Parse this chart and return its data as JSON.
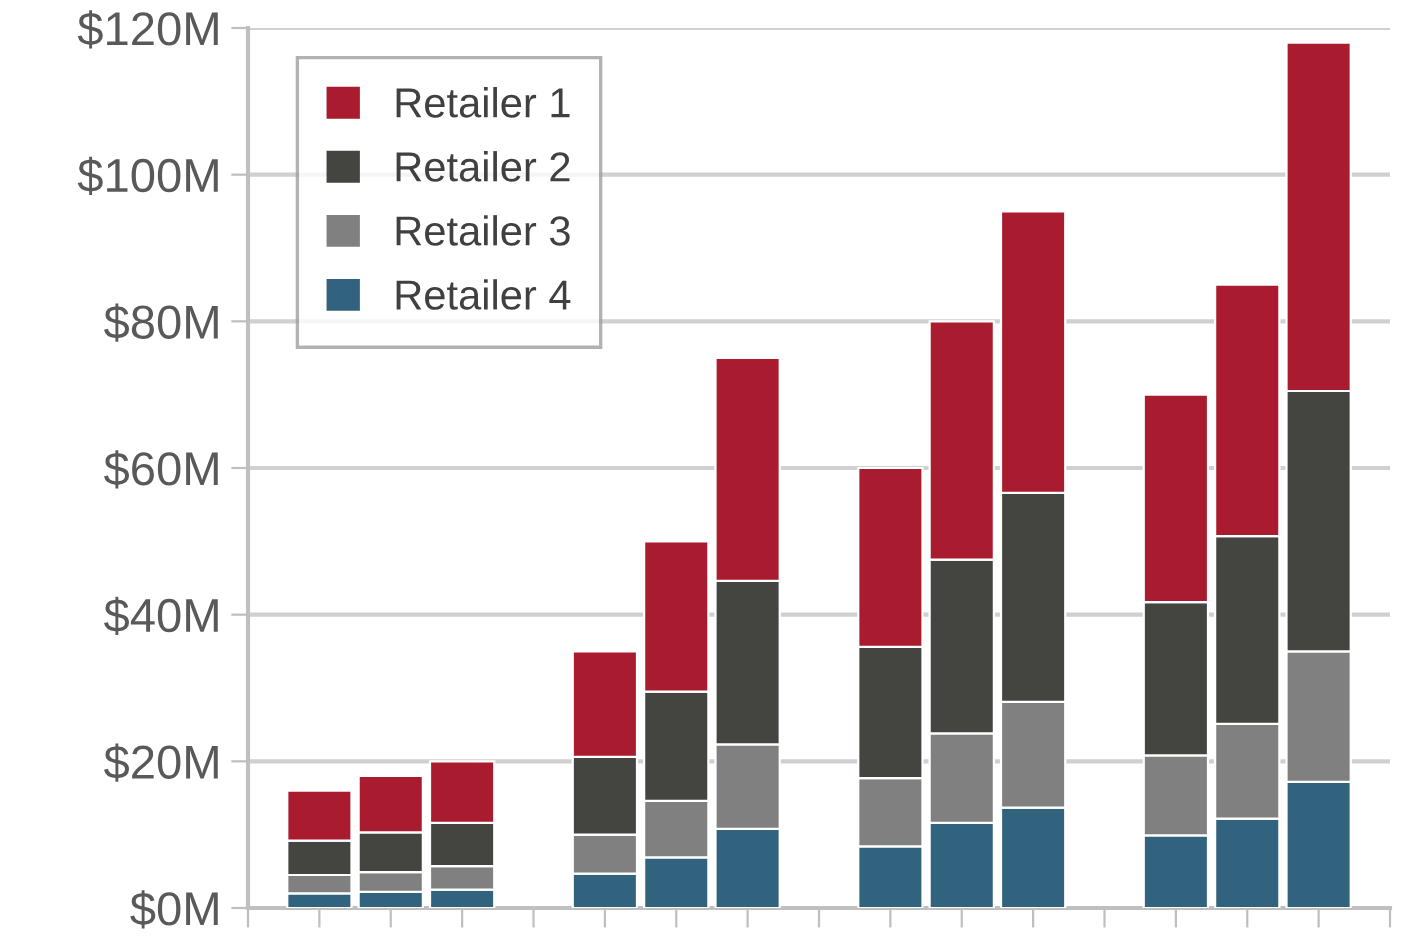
{
  "chart_data": {
    "type": "bar",
    "stacked": true,
    "categories": [
      null,
      null,
      null,
      null,
      null,
      null,
      null,
      null,
      null,
      null,
      null,
      null,
      null,
      null,
      null
    ],
    "series": [
      {
        "name": "Retailer 4",
        "color": "#31637f",
        "values": [
          2.0,
          2.2,
          2.5,
          null,
          4.7,
          6.9,
          10.8,
          null,
          8.4,
          11.6,
          13.7,
          null,
          9.9,
          12.2,
          17.2
        ]
      },
      {
        "name": "Retailer 3",
        "color": "#808080",
        "values": [
          2.5,
          2.7,
          3.2,
          null,
          5.3,
          7.7,
          11.5,
          null,
          9.3,
          12.2,
          14.4,
          null,
          10.9,
          12.9,
          17.8
        ]
      },
      {
        "name": "Retailer 2",
        "color": "#444440",
        "values": [
          4.7,
          5.4,
          5.9,
          null,
          10.6,
          14.9,
          22.3,
          null,
          17.9,
          23.7,
          28.5,
          null,
          20.9,
          25.6,
          35.5
        ]
      },
      {
        "name": "Retailer 1",
        "color": "#a91b2e",
        "values": [
          6.8,
          7.7,
          8.4,
          null,
          14.4,
          20.5,
          30.4,
          null,
          24.4,
          32.5,
          38.4,
          null,
          28.3,
          34.3,
          47.5
        ]
      }
    ],
    "ylim": [
      0,
      120
    ],
    "yticks": [
      {
        "value": 0,
        "label": "$0M"
      },
      {
        "value": 20,
        "label": "$20M"
      },
      {
        "value": 40,
        "label": "$40M"
      },
      {
        "value": 60,
        "label": "$60M"
      },
      {
        "value": 80,
        "label": "$80M"
      },
      {
        "value": 100,
        "label": "$100M"
      },
      {
        "value": 120,
        "label": "$120M"
      }
    ],
    "grid": "y",
    "legend": "top left"
  }
}
